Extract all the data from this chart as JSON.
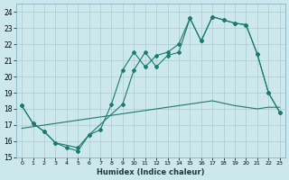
{
  "xlabel": "Humidex (Indice chaleur)",
  "bg_color": "#cce8ec",
  "grid_color": "#aacccc",
  "line_color": "#1a7a6e",
  "xlim": [
    -0.5,
    23.5
  ],
  "ylim": [
    15,
    24.5
  ],
  "yticks": [
    15,
    16,
    17,
    18,
    19,
    20,
    21,
    22,
    23,
    24
  ],
  "xticks": [
    0,
    1,
    2,
    3,
    4,
    5,
    6,
    7,
    8,
    9,
    10,
    11,
    12,
    13,
    14,
    15,
    16,
    17,
    18,
    19,
    20,
    21,
    22,
    23
  ],
  "line1_x": [
    0,
    1,
    2,
    3,
    4,
    5,
    6,
    7,
    8,
    9,
    10,
    11,
    12,
    13,
    14,
    15,
    16,
    17,
    18,
    19,
    20,
    21,
    22,
    23
  ],
  "line1_y": [
    18.2,
    17.1,
    16.6,
    15.9,
    15.6,
    15.4,
    16.4,
    16.7,
    18.3,
    20.4,
    21.5,
    20.6,
    21.3,
    21.5,
    22.0,
    23.6,
    22.2,
    23.7,
    23.5,
    23.3,
    23.2,
    21.4,
    19.0,
    17.8
  ],
  "line2_x": [
    0,
    1,
    2,
    3,
    5,
    6,
    9,
    10,
    11,
    12,
    13,
    14,
    15,
    16,
    17,
    18,
    19,
    20,
    21,
    22,
    23
  ],
  "line2_y": [
    18.2,
    17.1,
    16.6,
    15.9,
    15.6,
    16.4,
    18.3,
    20.4,
    21.5,
    20.6,
    21.3,
    21.5,
    23.6,
    22.2,
    23.7,
    23.5,
    23.3,
    23.2,
    21.4,
    19.0,
    17.8
  ],
  "line3_x": [
    0,
    1,
    2,
    3,
    4,
    5,
    6,
    7,
    8,
    9,
    10,
    11,
    12,
    13,
    14,
    15,
    16,
    17,
    18,
    19,
    20,
    21,
    22,
    23
  ],
  "line3_y": [
    16.8,
    16.9,
    17.0,
    17.1,
    17.2,
    17.3,
    17.4,
    17.5,
    17.6,
    17.7,
    17.8,
    17.9,
    18.0,
    18.1,
    18.2,
    18.3,
    18.4,
    18.5,
    18.35,
    18.2,
    18.1,
    18.0,
    18.1,
    18.1
  ]
}
